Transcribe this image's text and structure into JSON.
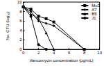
{
  "chart_data": {
    "type": "line",
    "xlabel": "Vancomycin concentration (μg/mL)",
    "ylabel": "No. CFU (log₁₀)",
    "xlim": [
      0,
      10
    ],
    "xticks": [
      0,
      2,
      4,
      6,
      8,
      10
    ],
    "ylim": [
      0,
      10
    ],
    "yticks": [
      0,
      2,
      4,
      6,
      8,
      10
    ],
    "grid": false,
    "legend": "upper right",
    "series": [
      {
        "name": "Mu3",
        "color": "#000000",
        "marker": "square",
        "line_style": "solid",
        "x": [
          0,
          1,
          2,
          3,
          4,
          8
        ],
        "values": [
          9,
          8.5,
          7,
          6.5,
          5.8,
          0
        ]
      },
      {
        "name": "A7",
        "color": "#000000",
        "marker": "diamond",
        "line_style": "solid",
        "x": [
          0,
          1,
          2,
          3,
          4,
          8
        ],
        "values": [
          9,
          8,
          6,
          5.5,
          5,
          0
        ]
      },
      {
        "name": "B5",
        "color": "#000000",
        "marker": "triangle",
        "line_style": "solid",
        "x": [
          0,
          1,
          2,
          3,
          4
        ],
        "values": [
          9,
          7.5,
          6.5,
          3.5,
          0
        ]
      },
      {
        "name": "J1",
        "color": "#000000",
        "marker": "circle",
        "line_style": "solid",
        "x": [
          0,
          1,
          2,
          3
        ],
        "values": [
          9,
          7,
          1,
          0
        ]
      }
    ]
  }
}
